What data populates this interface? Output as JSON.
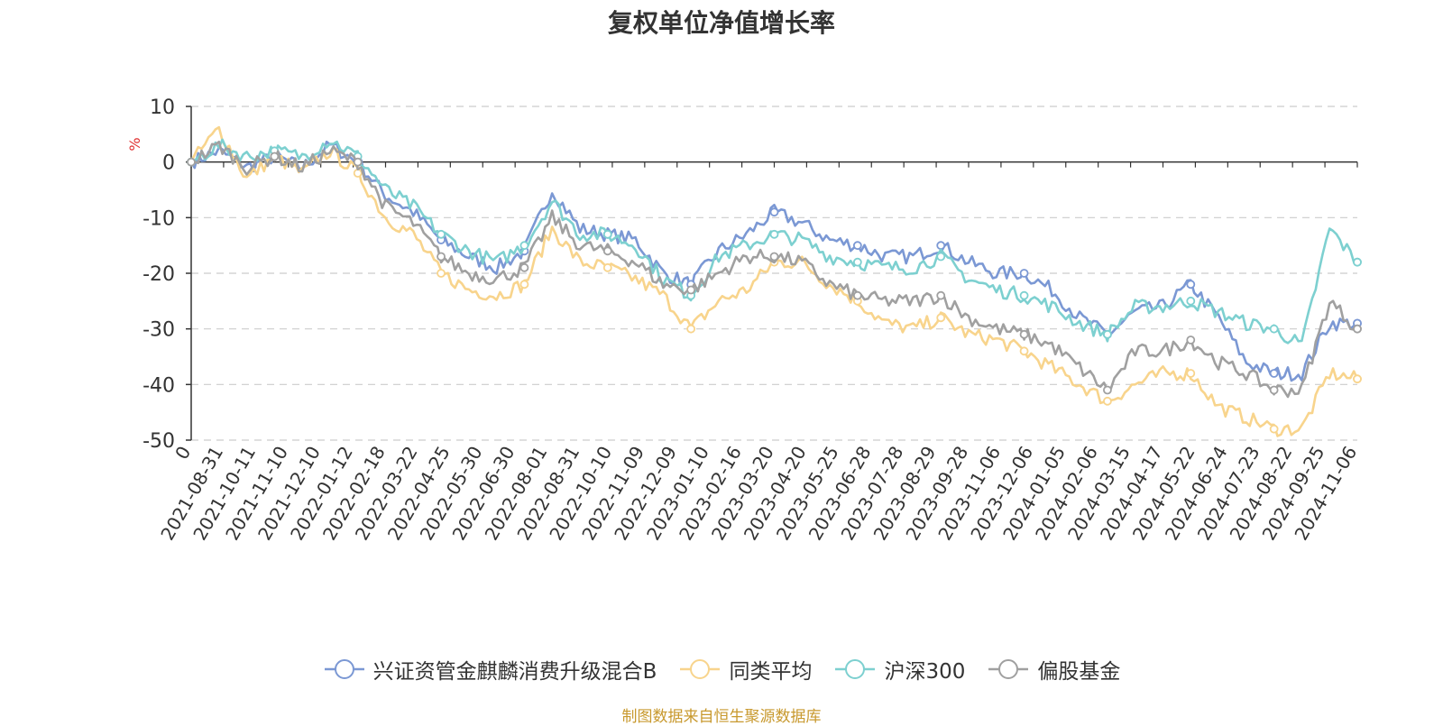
{
  "chart_data": {
    "type": "line",
    "title": "复权单位净值增长率",
    "ylabel": "%",
    "ylim": [
      -50,
      10
    ],
    "yticks": [
      10,
      0,
      -10,
      -20,
      -30,
      -40,
      -50
    ],
    "grid": true,
    "legend_position": "bottom",
    "x_tick_labels": [
      "0",
      "2021-08-31",
      "2021-10-11",
      "2021-11-10",
      "2021-12-10",
      "2022-01-12",
      "2022-02-18",
      "2022-03-22",
      "2022-04-25",
      "2022-05-30",
      "2022-06-30",
      "2022-08-01",
      "2022-08-31",
      "2022-10-10",
      "2022-11-09",
      "2022-12-09",
      "2023-01-10",
      "2023-02-16",
      "2023-03-20",
      "2023-04-20",
      "2023-05-25",
      "2023-06-28",
      "2023-07-28",
      "2023-08-29",
      "2023-09-28",
      "2023-11-06",
      "2023-12-06",
      "2024-01-05",
      "2024-02-06",
      "2024-03-15",
      "2024-04-17",
      "2024-05-22",
      "2024-06-24",
      "2024-07-23",
      "2024-08-22",
      "2024-09-25",
      "2024-11-06"
    ],
    "series": [
      {
        "name": "兴证资管金麒麟消费升级混合B",
        "color": "#7b98d4",
        "values": [
          0,
          2,
          -1,
          1,
          -1,
          3,
          0,
          -6,
          -9,
          -14,
          -17,
          -19,
          -16,
          -5,
          -12,
          -13,
          -14,
          -20,
          -22,
          -16,
          -13,
          -9,
          -11,
          -14,
          -15,
          -17,
          -17,
          -15,
          -18,
          -20,
          -20,
          -23,
          -28,
          -31,
          -27,
          -26,
          -22,
          -28,
          -36,
          -38,
          -38,
          -29,
          -29
        ]
      },
      {
        "name": "同类平均",
        "color": "#f8d48c",
        "values": [
          0,
          6,
          -3,
          1,
          -2,
          2,
          -2,
          -10,
          -13,
          -20,
          -23,
          -24,
          -22,
          -12,
          -18,
          -19,
          -21,
          -24,
          -30,
          -25,
          -23,
          -18,
          -18,
          -22,
          -25,
          -29,
          -30,
          -28,
          -31,
          -32,
          -34,
          -37,
          -40,
          -43,
          -40,
          -38,
          -38,
          -44,
          -46,
          -48,
          -48,
          -38,
          -39
        ]
      },
      {
        "name": "沪深300",
        "color": "#7dd0d0",
        "values": [
          0,
          3,
          1,
          2,
          1,
          4,
          1,
          -5,
          -8,
          -13,
          -16,
          -18,
          -15,
          -7,
          -13,
          -13,
          -15,
          -21,
          -24,
          -17,
          -15,
          -13,
          -14,
          -17,
          -18,
          -19,
          -19,
          -17,
          -21,
          -23,
          -24,
          -26,
          -29,
          -31,
          -26,
          -26,
          -25,
          -27,
          -29,
          -30,
          -33,
          -12,
          -18
        ]
      },
      {
        "name": "偏股基金",
        "color": "#a0a0a0",
        "values": [
          0,
          3,
          -1,
          1,
          -1,
          2,
          0,
          -8,
          -11,
          -17,
          -20,
          -21,
          -19,
          -10,
          -15,
          -16,
          -18,
          -22,
          -23,
          -20,
          -17,
          -17,
          -18,
          -22,
          -24,
          -25,
          -25,
          -24,
          -28,
          -30,
          -31,
          -33,
          -37,
          -41,
          -34,
          -34,
          -32,
          -36,
          -38,
          -41,
          -41,
          -25,
          -30
        ]
      }
    ]
  },
  "source_note": "制图数据来自恒生聚源数据库"
}
